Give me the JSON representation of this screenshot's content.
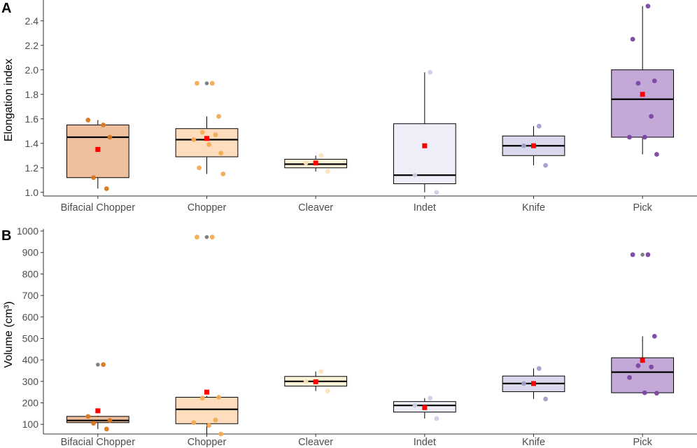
{
  "colors": {
    "median": "#000000",
    "mean_marker": "#ff0000",
    "outlier": "#808080",
    "axis": "#333333"
  },
  "categories": [
    "Bifacial Chopper",
    "Chopper",
    "Cleaver",
    "Indet",
    "Knife",
    "Pick"
  ],
  "category_colors": {
    "Bifacial Chopper": {
      "fill": "#edbf9d",
      "point": "#d9761e"
    },
    "Chopper": {
      "fill": "#fdddbd",
      "point": "#f4aa52"
    },
    "Cleaver": {
      "fill": "#fcf4d9",
      "point": "#fde1bb"
    },
    "Indet": {
      "fill": "#eeeef8",
      "point": "#cfcfe6"
    },
    "Knife": {
      "fill": "#d9d8ec",
      "point": "#a19ecb"
    },
    "Pick": {
      "fill": "#c3a9d7",
      "point": "#7b46a3"
    }
  },
  "chart_data": [
    {
      "type": "box",
      "panel_label": "A",
      "title": "",
      "xlabel": "",
      "ylabel": "Elongation index",
      "ylim": [
        0.97,
        2.57
      ],
      "yticks": [
        1.0,
        1.2,
        1.4,
        1.6,
        1.8,
        2.0,
        2.2,
        2.4
      ],
      "tick_decimals": 1,
      "categories": [
        "Bifacial Chopper",
        "Chopper",
        "Cleaver",
        "Indet",
        "Knife",
        "Pick"
      ],
      "boxes": [
        {
          "category": "Bifacial Chopper",
          "q1": 1.12,
          "median": 1.45,
          "q3": 1.55,
          "whisker_low": 1.03,
          "whisker_high": 1.59,
          "mean": 1.35
        },
        {
          "category": "Chopper",
          "q1": 1.29,
          "median": 1.43,
          "q3": 1.52,
          "whisker_low": 1.15,
          "whisker_high": 1.62,
          "mean": 1.44
        },
        {
          "category": "Cleaver",
          "q1": 1.2,
          "median": 1.23,
          "q3": 1.27,
          "whisker_low": 1.17,
          "whisker_high": 1.3,
          "mean": 1.24
        },
        {
          "category": "Indet",
          "q1": 1.07,
          "median": 1.14,
          "q3": 1.56,
          "whisker_low": 1.0,
          "whisker_high": 1.98,
          "mean": 1.38
        },
        {
          "category": "Knife",
          "q1": 1.3,
          "median": 1.38,
          "q3": 1.46,
          "whisker_low": 1.22,
          "whisker_high": 1.54,
          "mean": 1.38
        },
        {
          "category": "Pick",
          "q1": 1.45,
          "median": 1.76,
          "q3": 2.0,
          "whisker_low": 1.31,
          "whisker_high": 2.52,
          "mean": 1.8
        }
      ],
      "outliers": [
        {
          "category": "Chopper",
          "value": 1.89
        }
      ],
      "points": [
        {
          "category": "Bifacial Chopper",
          "values": [
            1.55,
            1.59,
            1.45,
            1.12,
            1.03
          ]
        },
        {
          "category": "Chopper",
          "values": [
            1.89,
            1.89,
            1.62,
            1.49,
            1.47,
            1.43,
            1.39,
            1.32,
            1.2,
            1.15
          ]
        },
        {
          "category": "Cleaver",
          "values": [
            1.3,
            1.24,
            1.17
          ]
        },
        {
          "category": "Indet",
          "values": [
            1.98,
            1.14,
            1.0
          ]
        },
        {
          "category": "Knife",
          "values": [
            1.54,
            1.38,
            1.22
          ]
        },
        {
          "category": "Pick",
          "values": [
            2.52,
            2.25,
            1.91,
            1.89,
            1.62,
            1.45,
            1.45,
            1.31
          ]
        }
      ]
    },
    {
      "type": "box",
      "panel_label": "B",
      "title": "",
      "xlabel": "",
      "ylabel": "Volume (cm³)",
      "ylim": [
        55,
        1010
      ],
      "yticks": [
        100,
        200,
        300,
        400,
        500,
        600,
        700,
        800,
        900,
        1000
      ],
      "tick_decimals": 0,
      "categories": [
        "Bifacial Chopper",
        "Chopper",
        "Cleaver",
        "Indet",
        "Knife",
        "Pick"
      ],
      "boxes": [
        {
          "category": "Bifacial Chopper",
          "q1": 108,
          "median": 118,
          "q3": 137,
          "whisker_low": 78,
          "whisker_high": 140,
          "mean": 163
        },
        {
          "category": "Chopper",
          "q1": 103,
          "median": 170,
          "q3": 226,
          "whisker_low": 55,
          "whisker_high": 232,
          "mean": 250
        },
        {
          "category": "Cleaver",
          "q1": 278,
          "median": 300,
          "q3": 323,
          "whisker_low": 255,
          "whisker_high": 346,
          "mean": 298
        },
        {
          "category": "Indet",
          "q1": 157,
          "median": 188,
          "q3": 206,
          "whisker_low": 127,
          "whisker_high": 222,
          "mean": 178
        },
        {
          "category": "Knife",
          "q1": 252,
          "median": 290,
          "q3": 325,
          "whisker_low": 218,
          "whisker_high": 360,
          "mean": 290
        },
        {
          "category": "Pick",
          "q1": 247,
          "median": 343,
          "q3": 410,
          "whisker_low": 245,
          "whisker_high": 510,
          "mean": 398
        }
      ],
      "outliers": [
        {
          "category": "Bifacial Chopper",
          "value": 378
        },
        {
          "category": "Chopper",
          "value": 972
        },
        {
          "category": "Pick",
          "value": 890
        }
      ],
      "points": [
        {
          "category": "Bifacial Chopper",
          "values": [
            378,
            137,
            118,
            105,
            78
          ]
        },
        {
          "category": "Chopper",
          "values": [
            972,
            972,
            226,
            222,
            120,
            108,
            95,
            55
          ]
        },
        {
          "category": "Cleaver",
          "values": [
            346,
            300,
            255
          ]
        },
        {
          "category": "Indet",
          "values": [
            222,
            188,
            127
          ]
        },
        {
          "category": "Knife",
          "values": [
            360,
            290,
            218
          ]
        },
        {
          "category": "Pick",
          "values": [
            890,
            890,
            510,
            373,
            367,
            318,
            247,
            245
          ]
        }
      ]
    }
  ]
}
